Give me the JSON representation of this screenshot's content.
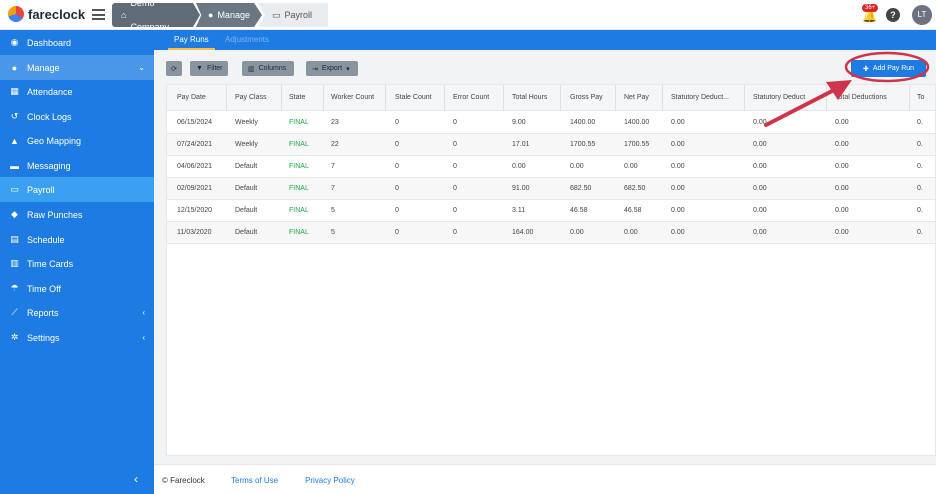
{
  "app": {
    "logo_text": "fareclock"
  },
  "breadcrumbs": [
    {
      "label": "Demo Company",
      "icon": "home-icon"
    },
    {
      "label": "Manage",
      "icon": "user-icon"
    },
    {
      "label": "Payroll",
      "icon": "payroll-icon"
    }
  ],
  "header": {
    "notification_count": "36+",
    "avatar_initials": "LT"
  },
  "sidebar": {
    "items": [
      {
        "label": "Dashboard",
        "icon": "dashboard-icon"
      },
      {
        "label": "Manage",
        "icon": "user-icon"
      },
      {
        "label": "Attendance",
        "icon": "attendance-icon"
      },
      {
        "label": "Clock Logs",
        "icon": "history-icon"
      },
      {
        "label": "Geo Mapping",
        "icon": "map-icon"
      },
      {
        "label": "Messaging",
        "icon": "chat-icon"
      },
      {
        "label": "Payroll",
        "icon": "payroll-icon"
      },
      {
        "label": "Raw Punches",
        "icon": "punch-icon"
      },
      {
        "label": "Schedule",
        "icon": "calendar-icon"
      },
      {
        "label": "Time Cards",
        "icon": "timecard-icon"
      },
      {
        "label": "Time Off",
        "icon": "beach-icon"
      },
      {
        "label": "Reports",
        "icon": "chart-icon"
      },
      {
        "label": "Settings",
        "icon": "gear-icon"
      }
    ]
  },
  "subnav": {
    "tabs": [
      "Pay Runs",
      "Adjustments"
    ]
  },
  "toolbar": {
    "filter": "Filter",
    "columns": "Columns",
    "export": "Export",
    "add_pay_run": "Add Pay Run"
  },
  "table": {
    "headers": [
      "Pay Date",
      "Pay Class",
      "State",
      "Worker Count",
      "Stale Count",
      "Error Count",
      "Total Hours",
      "Gross Pay",
      "Net Pay",
      "Statutory Deduct...",
      "Statutory Deduct",
      "Total Deductions",
      "To"
    ],
    "rows": [
      [
        "06/15/2024",
        "Weekly",
        "FINAL",
        "23",
        "0",
        "0",
        "9.00",
        "1400.00",
        "1400.00",
        "0.00",
        "0.00",
        "0.00",
        "0."
      ],
      [
        "07/24/2021",
        "Weekly",
        "FINAL",
        "22",
        "0",
        "0",
        "17.01",
        "1700.55",
        "1700.55",
        "0.00",
        "0.00",
        "0.00",
        "0."
      ],
      [
        "04/06/2021",
        "Default",
        "FINAL",
        "7",
        "0",
        "0",
        "0.00",
        "0.00",
        "0.00",
        "0.00",
        "0.00",
        "0.00",
        "0."
      ],
      [
        "02/09/2021",
        "Default",
        "FINAL",
        "7",
        "0",
        "0",
        "91.00",
        "682.50",
        "682.50",
        "0.00",
        "0.00",
        "0.00",
        "0."
      ],
      [
        "12/15/2020",
        "Default",
        "FINAL",
        "5",
        "0",
        "0",
        "3.11",
        "46.58",
        "46.58",
        "0.00",
        "0.00",
        "0.00",
        "0."
      ],
      [
        "11/03/2020",
        "Default",
        "FINAL",
        "5",
        "0",
        "0",
        "164.00",
        "0.00",
        "0.00",
        "0.00",
        "0.00",
        "0.00",
        "0."
      ]
    ]
  },
  "footer": {
    "copyright": "© Fareclock",
    "terms": "Terms of Use",
    "privacy": "Privacy Policy"
  },
  "colors": {
    "primary": "#1d7be2",
    "final": "#22a84a",
    "annotation": "#d0344a"
  }
}
